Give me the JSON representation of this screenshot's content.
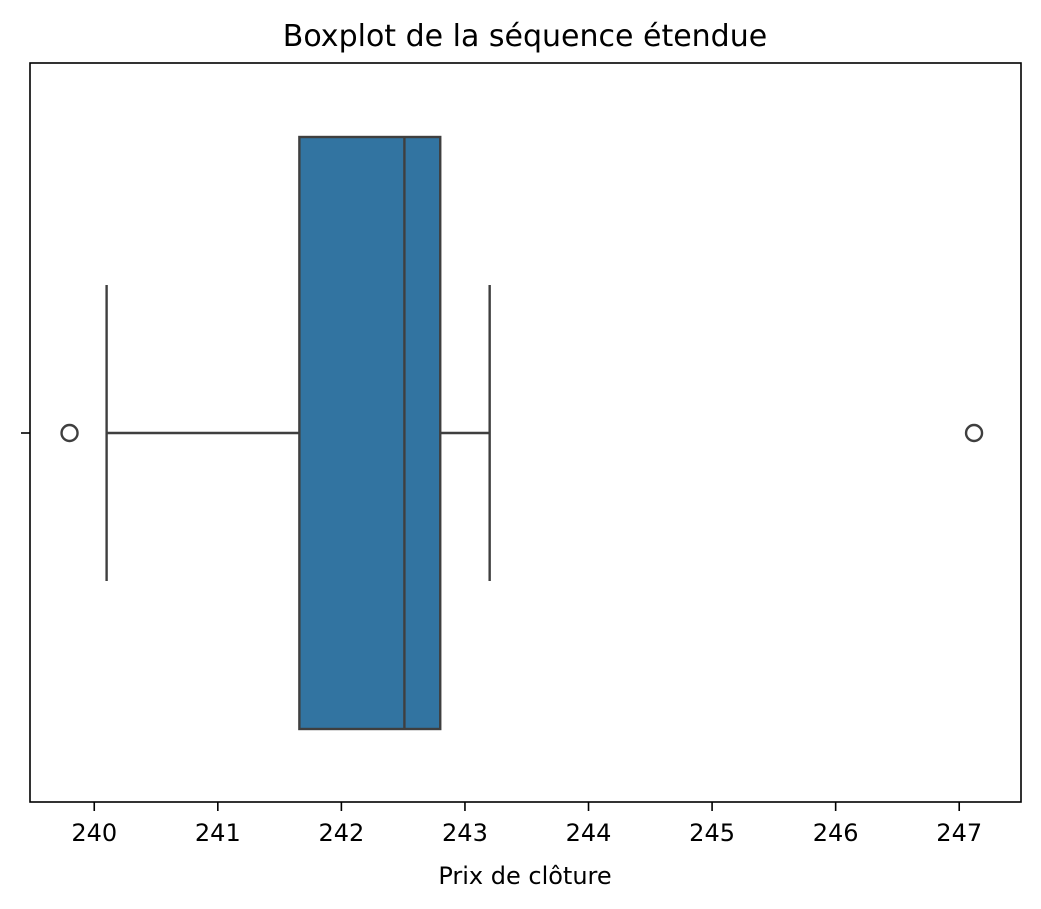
{
  "chart_data": {
    "type": "boxplot",
    "title": "Boxplot de la séquence étendue",
    "xlabel": "Prix de clôture",
    "ylabel": "",
    "xlim": [
      239.48,
      247.5
    ],
    "xticks": [
      240,
      241,
      242,
      243,
      244,
      245,
      246,
      247
    ],
    "grid": false,
    "series": [
      {
        "whisker_low": 240.1,
        "q1": 241.66,
        "median": 242.51,
        "q3": 242.8,
        "whisker_high": 243.2,
        "outliers": [
          239.8,
          247.12
        ],
        "color": "#3274a1",
        "line_color": "#3f3f3f"
      }
    ]
  }
}
